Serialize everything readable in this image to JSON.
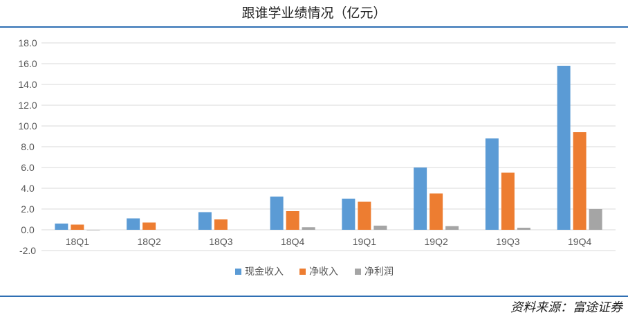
{
  "title": "跟谁学业绩情况（亿元）",
  "source": "资料来源：富途证券",
  "colors": {
    "cash_revenue": "#5b9bd5",
    "net_revenue": "#ed7d31",
    "net_profit": "#a5a5a5",
    "rule": "#2f6fb3",
    "grid": "#d9d9d9"
  },
  "chart_data": {
    "type": "bar",
    "categories": [
      "18Q1",
      "18Q2",
      "18Q3",
      "18Q4",
      "19Q1",
      "19Q2",
      "19Q3",
      "19Q4"
    ],
    "series": [
      {
        "name": "现金收入",
        "values": [
          0.6,
          1.1,
          1.7,
          3.2,
          3.0,
          6.0,
          8.8,
          15.8
        ]
      },
      {
        "name": "净收入",
        "values": [
          0.5,
          0.7,
          1.0,
          1.8,
          2.7,
          3.5,
          5.5,
          9.4
        ]
      },
      {
        "name": "净利润",
        "values": [
          -0.05,
          0.0,
          0.0,
          0.25,
          0.4,
          0.35,
          0.2,
          2.0
        ]
      }
    ],
    "yticks": [
      "18.0",
      "16.0",
      "14.0",
      "12.0",
      "10.0",
      "8.0",
      "6.0",
      "4.0",
      "2.0",
      "0.0",
      "-2.0"
    ],
    "ylim": [
      -2.0,
      18.0
    ],
    "grid": true,
    "legend_position": "bottom"
  }
}
